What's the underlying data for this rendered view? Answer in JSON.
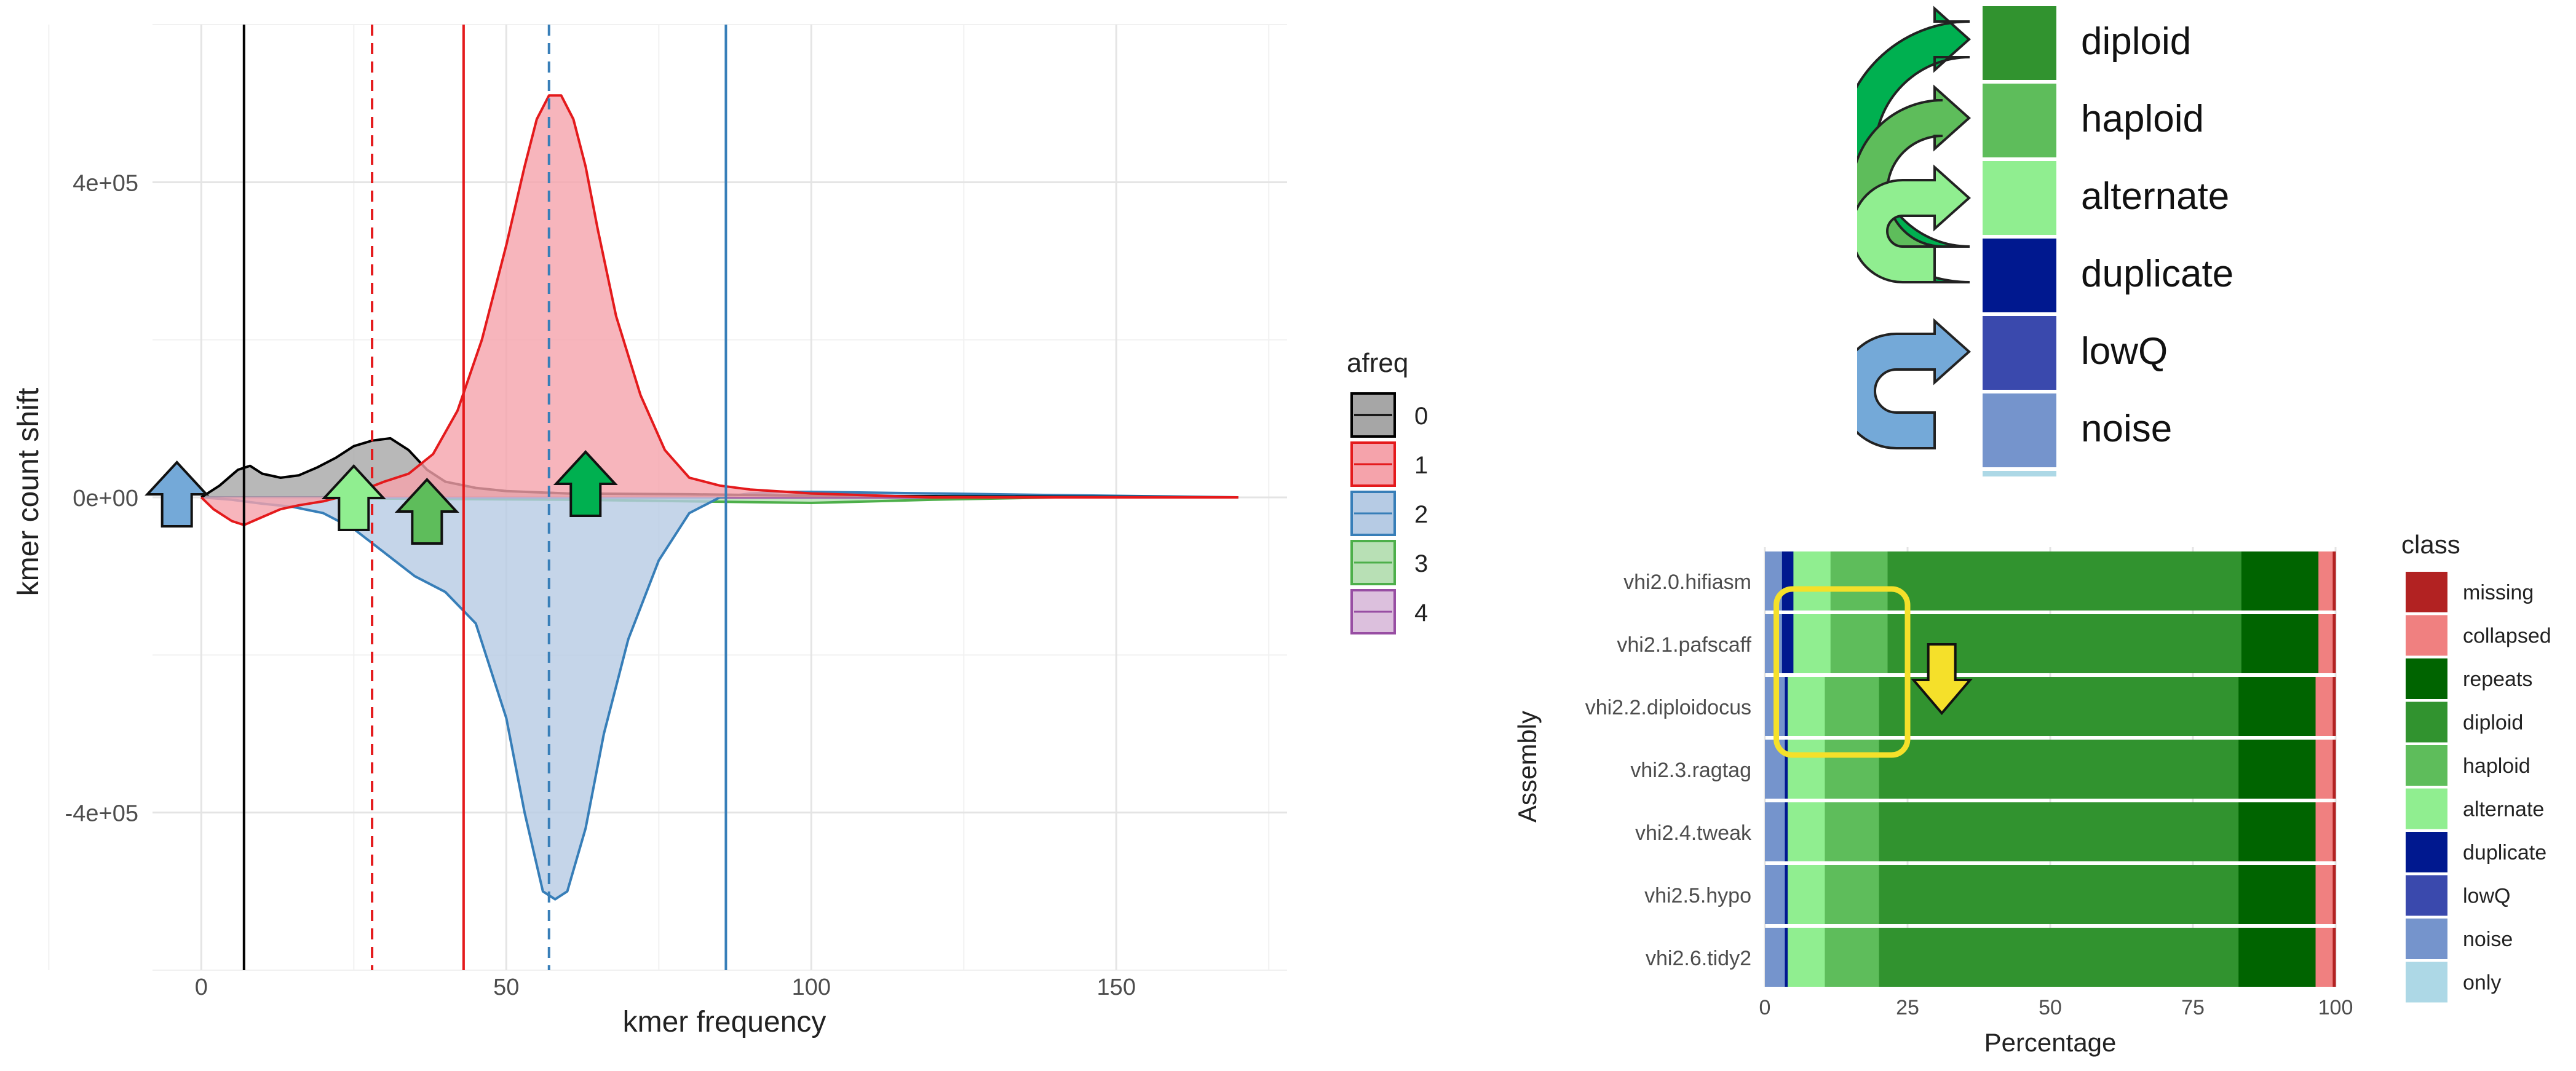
{
  "left_chart": {
    "xlabel": "kmer frequency",
    "ylabel": "kmer count shift",
    "x_ticks": [
      "0",
      "50",
      "100",
      "150"
    ],
    "y_ticks": [
      "4e+05",
      "0e+00",
      "-4e+05"
    ],
    "legend_title": "afreq",
    "legend": [
      {
        "label": "0",
        "fill": "#a6a6a6",
        "line": "#000000"
      },
      {
        "label": "1",
        "fill": "#f5a3ab",
        "line": "#e41a1c"
      },
      {
        "label": "2",
        "fill": "#b6cbe4",
        "line": "#377eb8"
      },
      {
        "label": "3",
        "fill": "#b8e0b5",
        "line": "#4daf4a"
      },
      {
        "label": "4",
        "fill": "#dcc0dd",
        "line": "#984ea3"
      }
    ]
  },
  "key_panel": {
    "labels": [
      {
        "text": "diploid",
        "color": "#31932f"
      },
      {
        "text": "haploid",
        "color": "#5ebd5b"
      },
      {
        "text": "alternate",
        "color": "#90ee90"
      },
      {
        "text": "duplicate",
        "color": "#00188f"
      },
      {
        "text": "lowQ",
        "color": "#3a49ad"
      },
      {
        "text": "noise",
        "color": "#7594cc"
      }
    ]
  },
  "right_chart": {
    "xlabel": "Percentage",
    "ylabel": "Assembly",
    "x_ticks": [
      "0",
      "25",
      "50",
      "75",
      "100"
    ],
    "legend_title": "class",
    "legend": [
      {
        "label": "missing",
        "color": "#b22222"
      },
      {
        "label": "collapsed",
        "color": "#f08080"
      },
      {
        "label": "repeats",
        "color": "#006400"
      },
      {
        "label": "diploid",
        "color": "#31932f"
      },
      {
        "label": "haploid",
        "color": "#5ebd5b"
      },
      {
        "label": "alternate",
        "color": "#90ee90"
      },
      {
        "label": "duplicate",
        "color": "#00188f"
      },
      {
        "label": "lowQ",
        "color": "#3a49ad"
      },
      {
        "label": "noise",
        "color": "#7594cc"
      },
      {
        "label": "only",
        "color": "#add8e6"
      }
    ]
  },
  "chart_data": [
    {
      "type": "area",
      "xlabel": "kmer frequency",
      "ylabel": "kmer count shift",
      "xlim": [
        -8,
        178
      ],
      "ylim": [
        -600000,
        600000
      ],
      "grid": true,
      "legend_title": "afreq",
      "legend_position": "right",
      "vlines": [
        {
          "x": 7,
          "color": "#000000",
          "style": "solid"
        },
        {
          "x": 28,
          "color": "#e41a1c",
          "style": "dashed"
        },
        {
          "x": 43,
          "color": "#e41a1c",
          "style": "solid"
        },
        {
          "x": 57,
          "color": "#377eb8",
          "style": "dashed"
        },
        {
          "x": 86,
          "color": "#377eb8",
          "style": "solid"
        }
      ],
      "arrows": [
        {
          "x": -4,
          "direction": "up",
          "color": "#74a9d8"
        },
        {
          "x": 25,
          "direction": "up",
          "color": "#90ee90"
        },
        {
          "x": 37,
          "direction": "up",
          "color": "#5ebd5b"
        },
        {
          "x": 63,
          "direction": "up",
          "color": "#00b050"
        }
      ],
      "series": [
        {
          "name": "0",
          "fill": "#a6a6a6",
          "line": "#000000",
          "x": [
            0,
            3,
            6,
            8,
            10,
            13,
            16,
            19,
            22,
            25,
            28,
            31,
            34,
            37,
            40,
            45,
            50,
            60,
            80,
            100,
            130,
            170
          ],
          "y": [
            0,
            15000,
            35000,
            40000,
            30000,
            25000,
            28000,
            38000,
            50000,
            65000,
            72000,
            75000,
            60000,
            35000,
            20000,
            12000,
            8000,
            5000,
            4000,
            2000,
            1000,
            0
          ]
        },
        {
          "name": "1",
          "fill": "#f5a3ab",
          "line": "#e41a1c",
          "x": [
            0,
            2,
            5,
            7,
            10,
            13,
            16,
            20,
            25,
            30,
            34,
            38,
            42,
            46,
            50,
            53,
            55,
            57,
            59,
            61,
            63,
            65,
            68,
            72,
            76,
            80,
            85,
            90,
            100,
            120,
            170
          ],
          "y": [
            0,
            -15000,
            -30000,
            -35000,
            -25000,
            -15000,
            -10000,
            -5000,
            5000,
            20000,
            30000,
            55000,
            110000,
            200000,
            320000,
            420000,
            480000,
            510000,
            510000,
            480000,
            420000,
            340000,
            230000,
            130000,
            60000,
            25000,
            15000,
            10000,
            5000,
            0,
            0
          ]
        },
        {
          "name": "2",
          "fill": "#b6cbe4",
          "line": "#377eb8",
          "x": [
            0,
            5,
            10,
            15,
            20,
            25,
            30,
            35,
            40,
            45,
            50,
            53,
            56,
            58,
            60,
            63,
            66,
            70,
            75,
            80,
            85,
            90,
            95,
            100,
            120,
            140,
            170
          ],
          "y": [
            0,
            -3000,
            -8000,
            -12000,
            -20000,
            -40000,
            -70000,
            -100000,
            -120000,
            -160000,
            -280000,
            -400000,
            -500000,
            -510000,
            -500000,
            -420000,
            -300000,
            -180000,
            -80000,
            -20000,
            0,
            5000,
            7000,
            7000,
            5000,
            3000,
            0
          ]
        },
        {
          "name": "3",
          "fill": "#b8e0b5",
          "line": "#4daf4a",
          "x": [
            0,
            20,
            40,
            60,
            80,
            100,
            120,
            140,
            170
          ],
          "y": [
            0,
            -1000,
            -2000,
            -3000,
            -5000,
            -7000,
            -3000,
            0,
            0
          ]
        },
        {
          "name": "4",
          "fill": "#dcc0dd",
          "line": "#984ea3",
          "x": [
            0,
            20,
            40,
            60,
            80,
            100,
            120,
            140,
            170
          ],
          "y": [
            0,
            0,
            0,
            0,
            0,
            0,
            0,
            0,
            0
          ]
        }
      ]
    },
    {
      "type": "bar",
      "orientation": "horizontal",
      "stacked": true,
      "xlabel": "Percentage",
      "ylabel": "Assembly",
      "xlim": [
        0,
        100
      ],
      "legend_title": "class",
      "legend_position": "right",
      "categories": [
        "vhi2.0.hifiasm",
        "vhi2.1.pafscaff",
        "vhi2.2.diploidocus",
        "vhi2.3.ragtag",
        "vhi2.4.tweak",
        "vhi2.5.hypo",
        "vhi2.6.tidy2"
      ],
      "series": [
        {
          "name": "noise",
          "color": "#7594cc",
          "values": [
            3,
            3,
            3.5,
            3.5,
            3.5,
            3.5,
            3.5
          ]
        },
        {
          "name": "lowQ",
          "color": "#3a49ad",
          "values": [
            0,
            0,
            0,
            0,
            0,
            0,
            0
          ]
        },
        {
          "name": "duplicate",
          "color": "#00188f",
          "values": [
            2,
            2,
            0.5,
            0.5,
            0.5,
            0.5,
            0.5
          ]
        },
        {
          "name": "alternate",
          "color": "#90ee90",
          "values": [
            6.5,
            6.5,
            6.5,
            6.5,
            6.5,
            6.5,
            6.5
          ]
        },
        {
          "name": "haploid",
          "color": "#5ebd5b",
          "values": [
            10,
            10,
            9.5,
            9.5,
            9.5,
            9.5,
            9.5
          ]
        },
        {
          "name": "diploid",
          "color": "#31932f",
          "values": [
            62,
            62,
            63,
            63,
            63,
            63,
            63
          ]
        },
        {
          "name": "repeats",
          "color": "#006400",
          "values": [
            13.5,
            13.5,
            13.5,
            13.5,
            13.5,
            13.5,
            13.5
          ]
        },
        {
          "name": "collapsed",
          "color": "#f08080",
          "values": [
            2.5,
            2.5,
            3,
            3,
            3,
            3,
            3
          ]
        },
        {
          "name": "missing",
          "color": "#b22222",
          "values": [
            0.5,
            0.5,
            0.5,
            0.5,
            0.5,
            0.5,
            0.5
          ]
        },
        {
          "name": "only",
          "color": "#add8e6",
          "values": [
            0,
            0,
            0,
            0,
            0,
            0,
            0
          ]
        }
      ],
      "highlight_box": {
        "categories": [
          "vhi2.1.pafscaff",
          "vhi2.2.diploidocus"
        ],
        "x_range": [
          2,
          25
        ],
        "color": "#f5e02a"
      },
      "arrow": {
        "direction": "down",
        "color": "#f5e02a",
        "near_x": 31
      }
    }
  ]
}
